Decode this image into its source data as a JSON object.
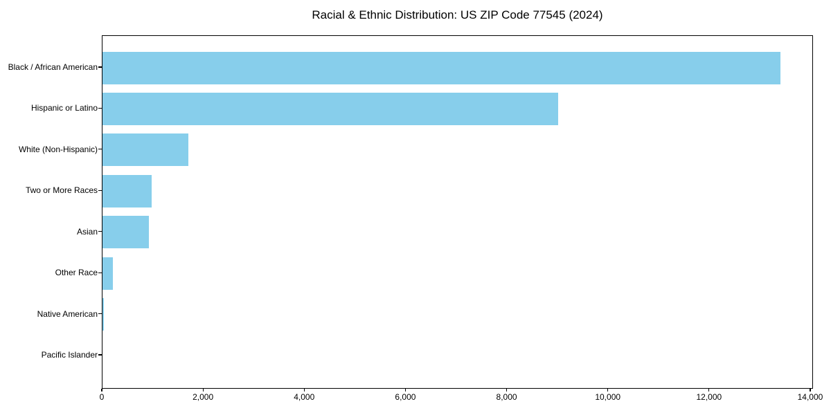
{
  "chart_data": {
    "type": "bar",
    "orientation": "horizontal",
    "title": "Racial & Ethnic Distribution: US ZIP Code 77545 (2024)",
    "categories": [
      "Black / African American",
      "Hispanic or Latino",
      "White (Non-Hispanic)",
      "Two or More Races",
      "Asian",
      "Other Race",
      "Native American",
      "Pacific Islander"
    ],
    "values": [
      13400,
      9000,
      1700,
      975,
      920,
      205,
      25,
      0
    ],
    "xlabel": "",
    "ylabel": "",
    "xlim": [
      0,
      14055
    ],
    "xticks": [
      0,
      2000,
      4000,
      6000,
      8000,
      10000,
      12000,
      14000
    ],
    "xtick_labels": [
      "0",
      "2,000",
      "4,000",
      "6,000",
      "8,000",
      "10,000",
      "12,000",
      "14,000"
    ],
    "bar_color": "#87CEEB",
    "axis_color": "#000000",
    "background_color": "#FFFFFF",
    "grid": false,
    "legend": null
  }
}
